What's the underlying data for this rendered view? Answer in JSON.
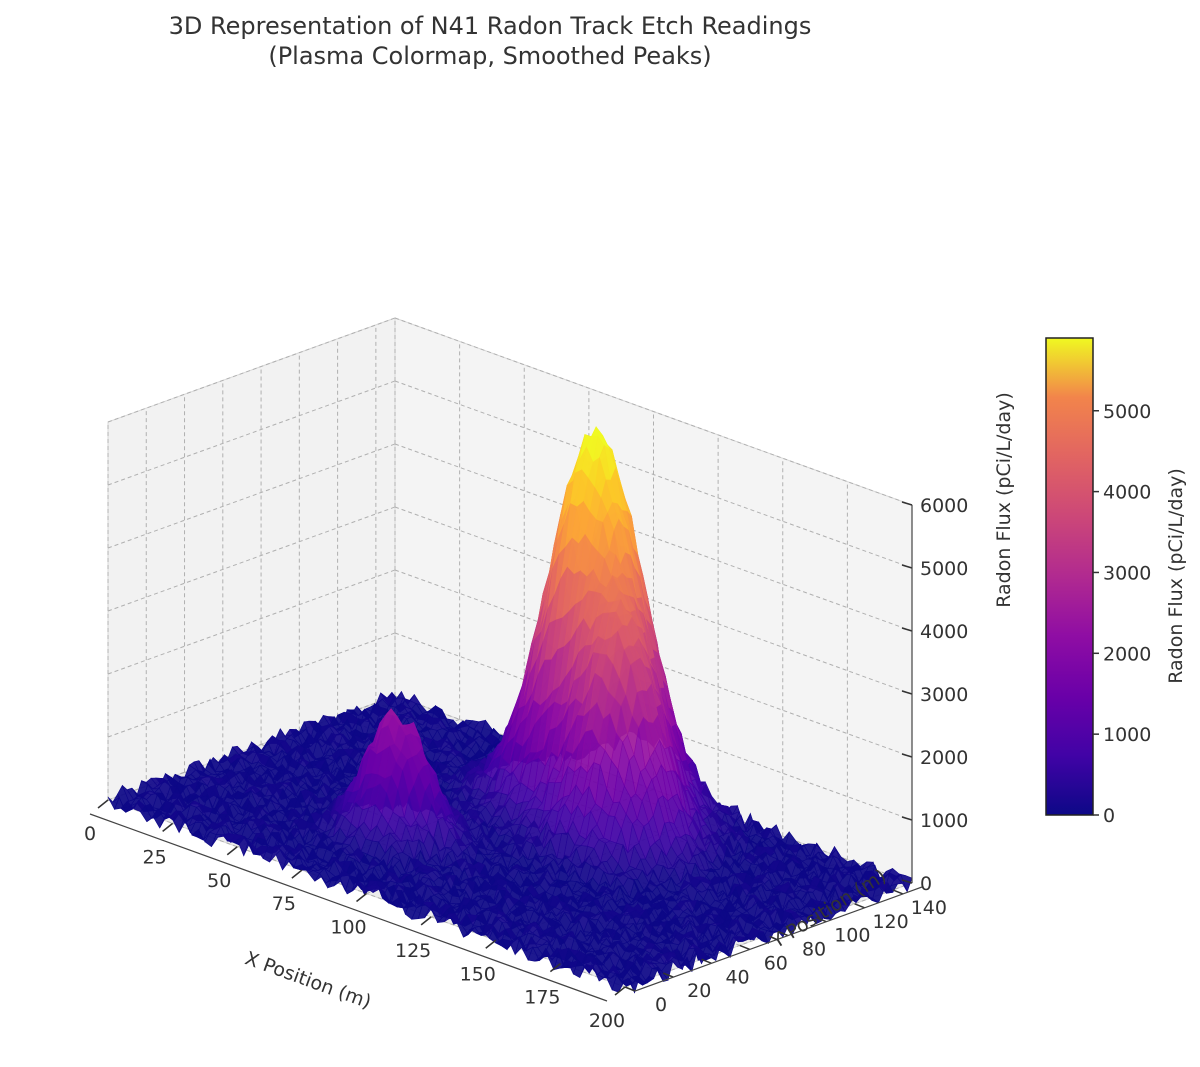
{
  "chart_data": {
    "type": "surface3d",
    "title": "3D Representation of N41 Radon Track Etch Readings\n(Plasma Colormap, Smoothed Peaks)",
    "xlabel": "X Position (m)",
    "ylabel": "Y Position (m)",
    "zlabel": "Radon Flux (pCi/L/day)",
    "xlim": [
      0,
      200
    ],
    "ylim": [
      0,
      150
    ],
    "zlim": [
      0,
      6000
    ],
    "x_ticks": [
      0,
      25,
      50,
      75,
      100,
      125,
      150,
      175,
      200
    ],
    "y_ticks": [
      0,
      20,
      40,
      60,
      80,
      100,
      120,
      140
    ],
    "z_ticks": [
      0,
      1000,
      2000,
      3000,
      4000,
      5000,
      6000
    ],
    "colormap": "plasma",
    "grid": true,
    "peaks": [
      {
        "x": 100,
        "y": 120,
        "amplitude": 5900,
        "sigma": 15
      },
      {
        "x": 125,
        "y": 100,
        "amplitude": 2900,
        "sigma": 12
      },
      {
        "x": 75,
        "y": 50,
        "amplitude": 1900,
        "sigma": 10
      }
    ],
    "noise_amplitude": 150,
    "colorbar": {
      "label": "Radon Flux (pCi/L/day)",
      "range": [
        0,
        5900
      ],
      "ticks": [
        0,
        1000,
        2000,
        3000,
        4000,
        5000
      ],
      "placement": "right"
    }
  }
}
